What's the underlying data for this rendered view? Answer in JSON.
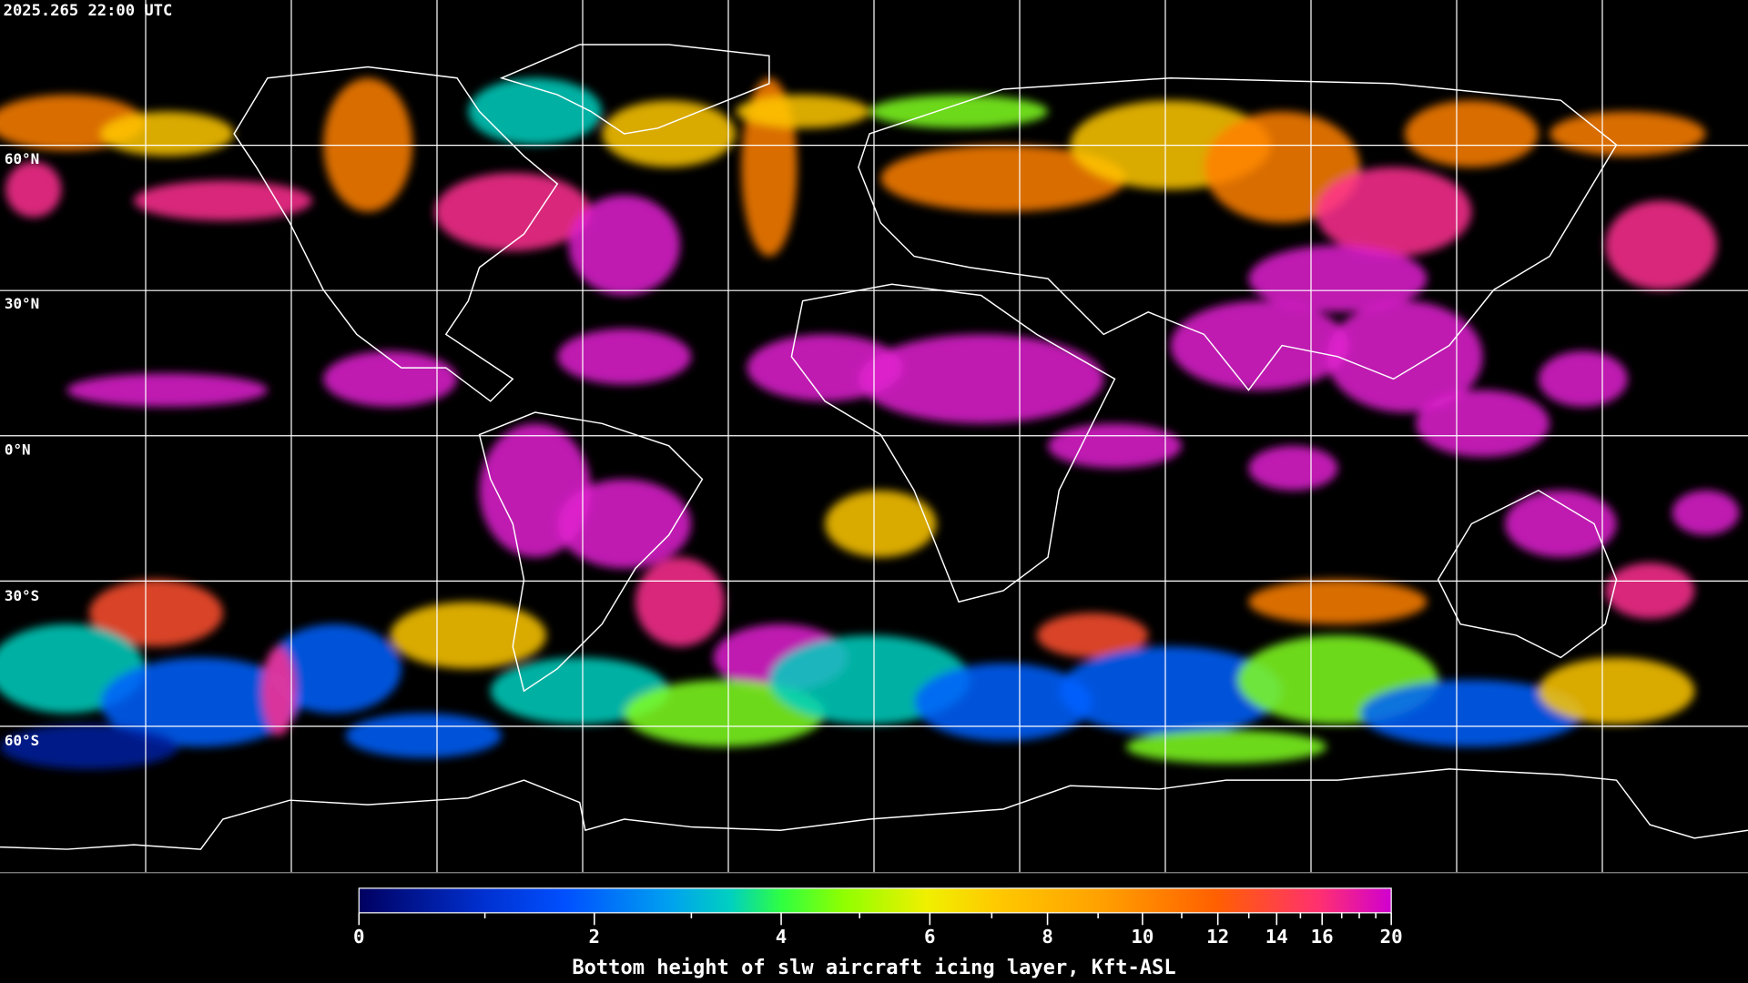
{
  "header": {
    "timestamp": "2025.265 22:00 UTC"
  },
  "map": {
    "projection": "equirectangular",
    "latitude_labels": [
      "60°N",
      "30°N",
      "0°N",
      "30°S",
      "60°S"
    ],
    "grid_spacing_degrees": 30,
    "grid_color": "#ffffff",
    "coastline_color": "#ffffff",
    "background_color": "#000000"
  },
  "colorbar": {
    "title": "Bottom height of slw aircraft icing layer, Kft-ASL",
    "min": 0,
    "max": 20,
    "tick_labels": [
      "0",
      "2",
      "4",
      "6",
      "8",
      "10",
      "12",
      "14",
      "16",
      "20"
    ],
    "colors": [
      "#000060",
      "#0040e0",
      "#00a0f0",
      "#00d8b0",
      "#30ff40",
      "#90ff00",
      "#f0f000",
      "#ffc800",
      "#ffa000",
      "#ff6000",
      "#ff3070",
      "#d000d0"
    ]
  }
}
